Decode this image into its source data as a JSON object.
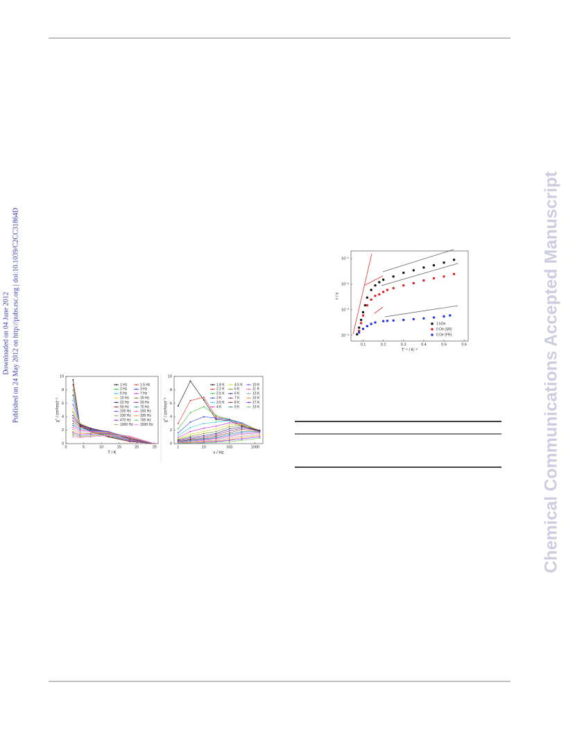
{
  "margin_notes": {
    "downloaded": "Downloaded on 04 June 2012",
    "published": "Published on 24 May 2012 on http://pubs.rsc.org | doi:10.1039/C2CC31864D"
  },
  "watermark": "Chemical Communications Accepted Manuscript",
  "chart_data": [
    {
      "type": "line",
      "markers": true,
      "xlabel": "T / K",
      "ylabel": "χ'' / cm³mol⁻¹",
      "x": [
        2,
        4,
        7,
        12,
        18,
        25
      ],
      "xlim": [
        0,
        26
      ],
      "ylim": [
        0,
        10
      ],
      "xticks": [
        0,
        5,
        10,
        15,
        20,
        25
      ],
      "yticks": [
        0,
        2,
        4,
        6,
        8,
        10
      ],
      "legend": "upper right",
      "legend_columns": 2,
      "legend_fill": "row",
      "series": [
        {
          "name": "1 Hz",
          "color": "#000000",
          "values": [
            9.5,
            2.6,
            1.8,
            1.0,
            0.3,
            0
          ]
        },
        {
          "name": "1.5 Hz",
          "color": "#e8201c",
          "values": [
            8.8,
            2.7,
            1.9,
            1.1,
            0.3,
            0
          ]
        },
        {
          "name": "2 Hz",
          "color": "#2fc02f",
          "values": [
            8.0,
            2.8,
            2.0,
            1.2,
            0.4,
            0
          ]
        },
        {
          "name": "3 Hz",
          "color": "#2036e0",
          "values": [
            7.2,
            2.9,
            2.1,
            1.3,
            0.4,
            0
          ]
        },
        {
          "name": "5 Hz",
          "color": "#20c8e0",
          "values": [
            6.4,
            3.0,
            2.2,
            1.4,
            0.5,
            0
          ]
        },
        {
          "name": "7 Hz",
          "color": "#e020d8",
          "values": [
            5.8,
            3.0,
            2.3,
            1.5,
            0.5,
            0
          ]
        },
        {
          "name": "10 Hz",
          "color": "#d8d820",
          "values": [
            5.2,
            3.0,
            2.3,
            1.6,
            0.6,
            0
          ]
        },
        {
          "name": "15 Hz",
          "color": "#808020",
          "values": [
            4.7,
            2.9,
            2.3,
            1.7,
            0.6,
            0
          ]
        },
        {
          "name": "22 Hz",
          "color": "#20208a",
          "values": [
            4.2,
            2.8,
            2.3,
            1.7,
            0.7,
            0
          ]
        },
        {
          "name": "33 Hz",
          "color": "#8a208a",
          "values": [
            3.8,
            2.7,
            2.2,
            1.8,
            0.7,
            0
          ]
        },
        {
          "name": "50 Hz",
          "color": "#8a2020",
          "values": [
            3.4,
            2.5,
            2.1,
            1.8,
            0.8,
            0
          ]
        },
        {
          "name": "70 Hz",
          "color": "#208a8a",
          "values": [
            3.0,
            2.3,
            2.0,
            1.8,
            0.8,
            0
          ]
        },
        {
          "name": "100 Hz",
          "color": "#5050ff",
          "values": [
            2.7,
            2.1,
            1.9,
            1.8,
            0.9,
            0
          ]
        },
        {
          "name": "150 Hz",
          "color": "#ff50a0",
          "values": [
            2.4,
            1.9,
            1.8,
            1.7,
            0.9,
            0
          ]
        },
        {
          "name": "230 Hz",
          "color": "#a0a0a0",
          "values": [
            2.1,
            1.7,
            1.6,
            1.7,
            1.0,
            0
          ]
        },
        {
          "name": "330 Hz",
          "color": "#ff9020",
          "values": [
            1.8,
            1.5,
            1.5,
            1.6,
            1.0,
            0
          ]
        },
        {
          "name": "470 Hz",
          "color": "#9020ff",
          "values": [
            1.6,
            1.3,
            1.4,
            1.5,
            1.1,
            0
          ]
        },
        {
          "name": "700 Hz",
          "color": "#60c060",
          "values": [
            1.4,
            1.1,
            1.2,
            1.4,
            1.1,
            0
          ]
        },
        {
          "name": "1000 Hz",
          "color": "#c0a060",
          "values": [
            1.2,
            1.0,
            1.1,
            1.3,
            1.1,
            0
          ]
        },
        {
          "name": "1500 Hz",
          "color": "#ff80ff",
          "values": [
            1.0,
            0.9,
            1.0,
            1.2,
            1.1,
            0
          ]
        }
      ]
    },
    {
      "type": "line",
      "markers": true,
      "xlabel": "ν / Hz",
      "ylabel": "χ'' / cm³mol⁻¹",
      "xscale": "log",
      "x": [
        1,
        3,
        10,
        30,
        100,
        300,
        1500
      ],
      "xlim": [
        0.7,
        2000
      ],
      "ylim": [
        0,
        10
      ],
      "xticks": [
        1,
        10,
        100,
        1000
      ],
      "yticks": [
        0,
        2,
        4,
        6,
        8,
        10
      ],
      "legend": "upper right",
      "legend_columns": 3,
      "legend_fill": "column",
      "series": [
        {
          "name": "1.8 K",
          "color": "#000000",
          "values": [
            5.6,
            9.3,
            6.5,
            3.6,
            3.4,
            2.6,
            1.8
          ]
        },
        {
          "name": "2.2 K",
          "color": "#e8201c",
          "values": [
            3.0,
            6.4,
            6.9,
            4.0,
            3.5,
            2.8,
            1.8
          ]
        },
        {
          "name": "2.5 K",
          "color": "#2fc02f",
          "values": [
            2.2,
            4.6,
            5.5,
            4.2,
            3.6,
            3.0,
            1.8
          ]
        },
        {
          "name": "3 K",
          "color": "#2036e0",
          "values": [
            1.6,
            3.2,
            4.0,
            3.8,
            3.6,
            3.1,
            1.9
          ]
        },
        {
          "name": "3.5 K",
          "color": "#20c8e0",
          "values": [
            1.2,
            2.4,
            3.0,
            3.2,
            3.4,
            3.1,
            1.9
          ]
        },
        {
          "name": "4 K",
          "color": "#e020d8",
          "values": [
            0.9,
            1.8,
            2.3,
            2.6,
            3.1,
            3.0,
            1.9
          ]
        },
        {
          "name": "4.5 K",
          "color": "#d8d820",
          "values": [
            0.7,
            1.4,
            1.8,
            2.2,
            2.8,
            2.9,
            2.0
          ]
        },
        {
          "name": "5 K",
          "color": "#808020",
          "values": [
            0.6,
            1.1,
            1.5,
            1.8,
            2.5,
            2.7,
            2.0
          ]
        },
        {
          "name": "6 K",
          "color": "#20208a",
          "values": [
            0.5,
            0.9,
            1.2,
            1.5,
            2.2,
            2.5,
            2.0
          ]
        },
        {
          "name": "7 K",
          "color": "#8a208a",
          "values": [
            0.4,
            0.7,
            1.0,
            1.3,
            1.9,
            2.3,
            2.0
          ]
        },
        {
          "name": "8 K",
          "color": "#8a2020",
          "values": [
            0.3,
            0.6,
            0.8,
            1.1,
            1.6,
            2.1,
            1.9
          ]
        },
        {
          "name": "9 K",
          "color": "#208a8a",
          "values": [
            0.3,
            0.5,
            0.7,
            0.9,
            1.4,
            1.8,
            1.8
          ]
        },
        {
          "name": "10 K",
          "color": "#5050ff",
          "values": [
            0.2,
            0.4,
            0.6,
            0.8,
            1.2,
            1.6,
            1.7
          ]
        },
        {
          "name": "11 K",
          "color": "#ff50a0",
          "values": [
            0.2,
            0.3,
            0.5,
            0.7,
            1.0,
            1.4,
            1.6
          ]
        },
        {
          "name": "13 K",
          "color": "#a0a0a0",
          "values": [
            0.1,
            0.3,
            0.4,
            0.5,
            0.8,
            1.1,
            1.4
          ]
        },
        {
          "name": "15 K",
          "color": "#ff9020",
          "values": [
            0.1,
            0.2,
            0.3,
            0.4,
            0.6,
            0.9,
            1.2
          ]
        },
        {
          "name": "17 K",
          "color": "#9020ff",
          "values": [
            0.1,
            0.1,
            0.2,
            0.3,
            0.5,
            0.7,
            1.0
          ]
        },
        {
          "name": "19 K",
          "color": "#60c060",
          "values": [
            0.1,
            0.1,
            0.1,
            0.2,
            0.3,
            0.5,
            0.8
          ]
        }
      ]
    },
    {
      "type": "scatter",
      "xlabel": "T⁻¹ / K⁻¹",
      "ylabel": "τ / s",
      "yscale": "log",
      "xlim": [
        0.04,
        0.62
      ],
      "ylim": [
        6e-05,
        0.2
      ],
      "xticks": [
        0.1,
        0.2,
        0.3,
        0.4,
        0.5,
        0.6
      ],
      "yticks": [
        {
          "value": 0.0001,
          "label": "10⁻⁴"
        },
        {
          "value": 0.001,
          "label": "10⁻³"
        },
        {
          "value": 0.01,
          "label": "10⁻²"
        },
        {
          "value": 0.1,
          "label": "10⁻¹"
        }
      ],
      "legend": "lower right",
      "series": [
        {
          "name": "1 kOe",
          "color": "#111111",
          "x": [
            0.07,
            0.08,
            0.09,
            0.1,
            0.11,
            0.12,
            0.14,
            0.16,
            0.18,
            0.2,
            0.25,
            0.3,
            0.35,
            0.4,
            0.45,
            0.5,
            0.55
          ],
          "values": [
            0.00011,
            0.0002,
            0.0004,
            0.0008,
            0.0015,
            0.003,
            0.006,
            0.009,
            0.012,
            0.015,
            0.02,
            0.028,
            0.035,
            0.045,
            0.055,
            0.07,
            0.09
          ]
        },
        {
          "name": "0 Oe (SR)",
          "color": "#e02020",
          "x": [
            0.08,
            0.09,
            0.1,
            0.12,
            0.14,
            0.16,
            0.18,
            0.2,
            0.22,
            0.25,
            0.3,
            0.35,
            0.4,
            0.45,
            0.5,
            0.55
          ],
          "values": [
            0.00015,
            0.0003,
            0.0006,
            0.0015,
            0.0025,
            0.0035,
            0.004,
            0.005,
            0.006,
            0.007,
            0.009,
            0.011,
            0.014,
            0.017,
            0.02,
            0.025
          ]
        },
        {
          "name": "0 Oe (FR)",
          "color": "#2030e0",
          "x": [
            0.08,
            0.1,
            0.12,
            0.14,
            0.16,
            0.2,
            0.22,
            0.25,
            0.3,
            0.35,
            0.4,
            0.45,
            0.5,
            0.53
          ],
          "values": [
            0.00013,
            0.00018,
            0.00023,
            0.00028,
            0.00032,
            0.00036,
            0.00037,
            0.00038,
            0.0004,
            0.00043,
            0.00046,
            0.0005,
            0.00055,
            0.0006
          ]
        }
      ]
    }
  ]
}
